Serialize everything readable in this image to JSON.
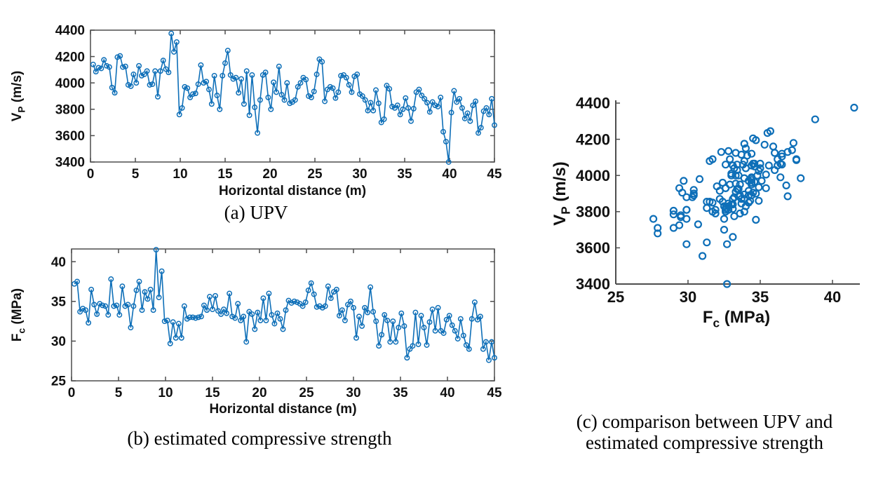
{
  "figure": {
    "captions": {
      "a": "(a) UPV",
      "b": "(b) estimated compressive strength",
      "c_line1": "(c) comparison between UPV and",
      "c_line2": "estimated compressive strength"
    }
  },
  "colors": {
    "series": "#0e6fb8",
    "axis": "#4d4d4d",
    "text": "#111111"
  },
  "chart_data": {
    "shared_series": {
      "distance_m": [
        0.3,
        0.6,
        0.9,
        1.2,
        1.5,
        1.8,
        2.1,
        2.4,
        2.7,
        3,
        3.3,
        3.6,
        3.9,
        4.2,
        4.5,
        4.8,
        5.1,
        5.4,
        5.7,
        6,
        6.3,
        6.6,
        6.9,
        7.2,
        7.5,
        7.8,
        8.1,
        8.4,
        8.7,
        9,
        9.3,
        9.6,
        9.9,
        10.2,
        10.5,
        10.8,
        11.1,
        11.4,
        11.7,
        12,
        12.3,
        12.6,
        12.9,
        13.2,
        13.5,
        13.8,
        14.1,
        14.4,
        14.7,
        15,
        15.3,
        15.6,
        15.9,
        16.2,
        16.5,
        16.8,
        17.1,
        17.4,
        17.7,
        18,
        18.3,
        18.6,
        18.9,
        19.2,
        19.5,
        19.8,
        20.1,
        20.4,
        20.7,
        21,
        21.3,
        21.6,
        21.9,
        22.2,
        22.5,
        22.8,
        23.1,
        23.4,
        23.7,
        24,
        24.3,
        24.6,
        24.9,
        25.2,
        25.5,
        25.8,
        26.1,
        26.4,
        26.7,
        27,
        27.3,
        27.6,
        27.9,
        28.2,
        28.5,
        28.8,
        29.1,
        29.4,
        29.7,
        30,
        30.3,
        30.6,
        30.9,
        31.2,
        31.5,
        31.8,
        32.1,
        32.4,
        32.7,
        33,
        33.3,
        33.6,
        33.9,
        34.2,
        34.5,
        34.8,
        35.1,
        35.4,
        35.7,
        36,
        36.3,
        36.6,
        36.9,
        37.2,
        37.5,
        37.8,
        38.1,
        38.4,
        38.7,
        39,
        39.3,
        39.6,
        39.9,
        40.2,
        40.5,
        40.8,
        41.1,
        41.4,
        41.7,
        42,
        42.3,
        42.6,
        42.9,
        43.2,
        43.5,
        43.8,
        44.1,
        44.4,
        44.7,
        45
      ],
      "upv_mps": [
        4140,
        4085,
        4115,
        4110,
        4175,
        4130,
        4120,
        3965,
        3925,
        4195,
        4205,
        4120,
        4125,
        3985,
        3975,
        4065,
        4000,
        4130,
        4055,
        4065,
        4090,
        3985,
        3990,
        4090,
        3895,
        4090,
        4170,
        4105,
        4080,
        4375,
        4235,
        4310,
        3760,
        3810,
        3970,
        3960,
        3890,
        3915,
        3920,
        3990,
        4135,
        4000,
        4010,
        3950,
        3840,
        4055,
        3905,
        3800,
        4055,
        4150,
        4245,
        4060,
        4030,
        4040,
        3925,
        4030,
        3840,
        4090,
        3755,
        4060,
        3815,
        3620,
        3870,
        4060,
        4080,
        3890,
        3800,
        4005,
        3930,
        4125,
        3910,
        3870,
        4000,
        3845,
        3855,
        3870,
        3970,
        4000,
        4040,
        4025,
        3900,
        3890,
        3935,
        4065,
        4180,
        4160,
        3860,
        3950,
        3970,
        3960,
        3885,
        3930,
        4055,
        4060,
        4040,
        3985,
        3930,
        4050,
        4065,
        3915,
        3900,
        3870,
        3790,
        3850,
        3790,
        3945,
        3845,
        3700,
        3725,
        3980,
        3955,
        3820,
        3810,
        3830,
        3760,
        3800,
        3885,
        3810,
        3710,
        3805,
        3930,
        3950,
        3905,
        3880,
        3850,
        3780,
        3855,
        3830,
        3820,
        3890,
        3630,
        3555,
        3400,
        3775,
        3940,
        3855,
        3880,
        3810,
        3730,
        3770,
        3710,
        3830,
        3860,
        3620,
        3660,
        3785,
        3810,
        3760,
        3880,
        3680
      ],
      "fc_mpa": [
        37.2,
        37.5,
        33.7,
        34.1,
        33.9,
        32.3,
        36.5,
        34.6,
        33.4,
        34.7,
        34.5,
        34.4,
        33.3,
        37.8,
        34.4,
        34.5,
        33.3,
        36.9,
        34.4,
        34.6,
        31.7,
        34.4,
        36.4,
        37.5,
        33.9,
        36.2,
        35.3,
        36.5,
        33.9,
        41.5,
        35.5,
        38.8,
        32.5,
        32.6,
        29.7,
        32.4,
        30.4,
        32.2,
        30.4,
        34.4,
        32.8,
        33.0,
        33.0,
        32.9,
        33.0,
        33.1,
        34.5,
        33.9,
        35.6,
        34.0,
        35.7,
        33.8,
        33.4,
        34.0,
        33.5,
        36.0,
        33.1,
        32.9,
        34.7,
        32.6,
        33.1,
        29.9,
        33.7,
        33.4,
        31.5,
        33.6,
        32.6,
        35.4,
        32.6,
        36.0,
        33.3,
        32.2,
        33.5,
        32.8,
        31.5,
        33.9,
        35.1,
        34.8,
        35.0,
        34.9,
        34.7,
        34.4,
        34.9,
        36.4,
        37.3,
        35.9,
        34.3,
        34.4,
        34.2,
        34.4,
        36.9,
        35.4,
        36.2,
        36.5,
        33.2,
        33.9,
        32.6,
        34.6,
        35.0,
        34.2,
        30.4,
        33.1,
        31.9,
        34.2,
        33.6,
        36.8,
        33.7,
        32.5,
        29.4,
        30.8,
        33.3,
        32.6,
        29.9,
        32.5,
        29.9,
        31.7,
        33.5,
        31.9,
        27.9,
        29.0,
        29.4,
        33.6,
        29.6,
        33.2,
        31.7,
        29.5,
        32.4,
        34.0,
        31.3,
        34.2,
        31.3,
        31.0,
        32.7,
        33.2,
        32.0,
        31.3,
        30.3,
        32.8,
        30.7,
        29.5,
        29.0,
        32.8,
        34.9,
        32.7,
        33.1,
        29.0,
        29.9,
        27.6,
        29.9,
        27.9
      ]
    },
    "charts": [
      {
        "id": "a",
        "type": "line",
        "x_series": "distance_m",
        "y_series": "upv_mps",
        "title": "(a) UPV",
        "xlabel": "Horizontal distance (m)",
        "ylabel": {
          "pre": "V",
          "sub": "P",
          "post": " (m/s)"
        },
        "xlim": [
          0,
          45
        ],
        "ylim": [
          3400,
          4400
        ],
        "xticks": [
          0,
          5,
          10,
          15,
          20,
          25,
          30,
          35,
          40,
          45
        ],
        "yticks": [
          3400,
          3600,
          3800,
          4000,
          4200,
          4400
        ],
        "box": true,
        "grid": false,
        "legend": "none"
      },
      {
        "id": "b",
        "type": "line",
        "x_series": "distance_m",
        "y_series": "fc_mpa",
        "title": "(b) estimated compressive strength",
        "xlabel": "Horizontal distance (m)",
        "ylabel": {
          "pre": "F",
          "sub": "c",
          "post": " (MPa)"
        },
        "xlim": [
          0,
          45
        ],
        "ylim": [
          25,
          41.6
        ],
        "xticks": [
          0,
          5,
          10,
          15,
          20,
          25,
          30,
          35,
          40,
          45
        ],
        "yticks": [
          25,
          30,
          35,
          40
        ],
        "box": true,
        "grid": false,
        "legend": "none"
      },
      {
        "id": "c",
        "type": "scatter",
        "x_series": "fc_mpa",
        "y_series": "upv_mps",
        "title": "(c) comparison between UPV and estimated compressive strength",
        "xlabel": {
          "pre": "F",
          "sub": "c",
          "post": " (MPa)"
        },
        "ylabel": {
          "pre": "V",
          "sub": "P",
          "post": " (m/s)"
        },
        "xlim": [
          25,
          41.7
        ],
        "ylim": [
          3400,
          4400
        ],
        "xticks": [
          25,
          30,
          35,
          40
        ],
        "yticks": [
          3400,
          3600,
          3800,
          4000,
          4200,
          4400
        ],
        "box": false,
        "grid": false,
        "legend": "none"
      }
    ]
  }
}
